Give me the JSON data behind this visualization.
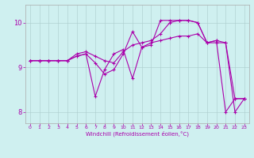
{
  "background_color": "#cff0f0",
  "line_color": "#aa00aa",
  "xlim": [
    -0.5,
    23.5
  ],
  "ylim": [
    7.75,
    10.4
  ],
  "yticks": [
    8,
    9,
    10
  ],
  "xticks": [
    0,
    1,
    2,
    3,
    4,
    5,
    6,
    7,
    8,
    9,
    10,
    11,
    12,
    13,
    14,
    15,
    16,
    17,
    18,
    19,
    20,
    21,
    22,
    23
  ],
  "xlabel": "Windchill (Refroidissement éolien,°C)",
  "line1_x": [
    0,
    1,
    2,
    3,
    4,
    5,
    6,
    7,
    8,
    9,
    10,
    11,
    12,
    13,
    14,
    15,
    16,
    17,
    18,
    19,
    20,
    21,
    22,
    23
  ],
  "line1_y": [
    9.15,
    9.15,
    9.15,
    9.15,
    9.15,
    9.25,
    9.3,
    8.35,
    8.95,
    9.3,
    9.4,
    8.75,
    9.45,
    9.55,
    9.6,
    9.65,
    9.7,
    9.7,
    9.75,
    9.55,
    9.6,
    8.0,
    8.3,
    8.3
  ],
  "line2_x": [
    0,
    1,
    2,
    3,
    4,
    5,
    6,
    7,
    8,
    9,
    10,
    11,
    12,
    13,
    14,
    15,
    16,
    17,
    18,
    19,
    20,
    21,
    22,
    23
  ],
  "line2_y": [
    9.15,
    9.15,
    9.15,
    9.15,
    9.15,
    9.3,
    9.35,
    9.25,
    9.15,
    9.1,
    9.35,
    9.5,
    9.55,
    9.6,
    9.75,
    10.0,
    10.05,
    10.05,
    10.0,
    9.55,
    9.55,
    9.55,
    8.3,
    8.3
  ],
  "line3_x": [
    0,
    1,
    2,
    3,
    4,
    5,
    6,
    7,
    8,
    9,
    10,
    11,
    12,
    13,
    14,
    15,
    16,
    17,
    18,
    19,
    20,
    21,
    22,
    23
  ],
  "line3_y": [
    9.15,
    9.15,
    9.15,
    9.15,
    9.15,
    9.25,
    9.3,
    9.1,
    8.85,
    8.95,
    9.3,
    9.8,
    9.45,
    9.5,
    10.05,
    10.05,
    10.05,
    10.05,
    10.0,
    9.55,
    9.6,
    9.55,
    8.0,
    8.3
  ]
}
